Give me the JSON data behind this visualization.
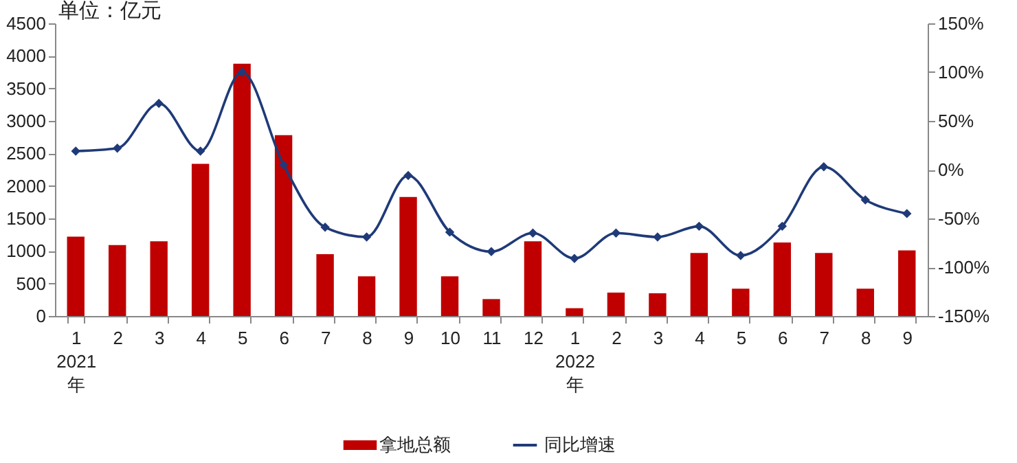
{
  "chart_data": {
    "type": "bar",
    "ylabel": "单位：亿元",
    "categories": [
      "1\n2021\n年",
      "2",
      "3",
      "4",
      "5",
      "6",
      "7",
      "8",
      "9",
      "10",
      "11",
      "12",
      "1\n2022\n年",
      "2",
      "3",
      "4",
      "5",
      "6",
      "7",
      "8",
      "9"
    ],
    "series": [
      {
        "name": "拿地总额",
        "color": "#c00000",
        "values": [
          1220,
          1090,
          1150,
          2340,
          3880,
          2780,
          950,
          610,
          1830,
          610,
          260,
          1150,
          120,
          360,
          350,
          970,
          420,
          1130,
          970,
          420,
          1010
        ]
      },
      {
        "name": "同比增速",
        "type": "line",
        "axis": "y2",
        "color": "#1f3a78",
        "marker": "diamond",
        "values": [
          19,
          22,
          68,
          19,
          100,
          5,
          -59,
          -69,
          -6,
          -64,
          -84,
          -65,
          -91,
          -65,
          -69,
          -58,
          -88,
          -58,
          3,
          -31,
          -45
        ]
      }
    ],
    "ylim": [
      0,
      4500
    ],
    "yticks": [
      0,
      500,
      1000,
      1500,
      2000,
      2500,
      3000,
      3500,
      4000,
      4500
    ],
    "y2lim": [
      -150,
      150
    ],
    "y2ticks": [
      {
        "value": -150,
        "label": "-150%"
      },
      {
        "value": -100,
        "label": "-100%"
      },
      {
        "value": -50,
        "label": "-50%"
      },
      {
        "value": 0,
        "label": "0%"
      },
      {
        "value": 50,
        "label": "50%"
      },
      {
        "value": 100,
        "label": "100%"
      },
      {
        "value": 150,
        "label": "150%"
      }
    ],
    "grid": false,
    "legend": "bottom"
  }
}
